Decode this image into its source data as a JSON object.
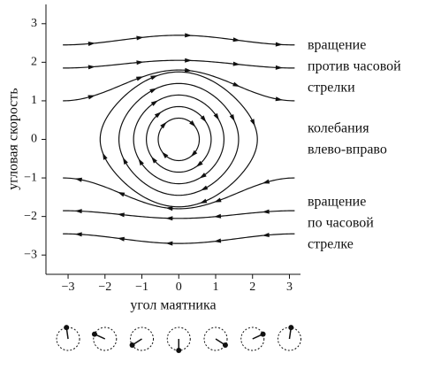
{
  "chart_data": {
    "type": "phase-portrait",
    "xlabel": "угол маятника",
    "ylabel": "угловая скорость",
    "xlim": [
      -3.6,
      3.3
    ],
    "ylim": [
      -3.5,
      3.5
    ],
    "xticks": [
      {
        "value": -3,
        "label": "−3"
      },
      {
        "value": -2,
        "label": "−2"
      },
      {
        "value": -1,
        "label": "−1"
      },
      0,
      1,
      2,
      3
    ],
    "yticks": [
      {
        "value": -3,
        "label": "−3"
      },
      {
        "value": -2,
        "label": "−2"
      },
      {
        "value": -1,
        "label": "−1"
      },
      0,
      1,
      2,
      3
    ],
    "rotations": [
      {
        "omega0": 2.7,
        "omega_pi": 2.45
      },
      {
        "omega0": 2.05,
        "omega_pi": 1.85
      },
      {
        "omega0": 1.8,
        "omega_pi": 1.0
      },
      {
        "omega0": -2.7,
        "omega_pi": -2.45
      },
      {
        "omega0": -2.05,
        "omega_pi": -1.85
      },
      {
        "omega0": -1.8,
        "omega_pi": -1.0
      }
    ],
    "orbits": [
      {
        "omega0": 0.55
      },
      {
        "omega0": 0.85
      },
      {
        "omega0": 1.15
      },
      {
        "omega0": 1.45
      },
      {
        "omega0": 1.75
      }
    ],
    "annotations": [
      [
        "вращение",
        "против часовой",
        "стрелки"
      ],
      [
        "колебания",
        "влево-вправо"
      ],
      [
        "вращение",
        "по часовой",
        "стрелке"
      ]
    ]
  }
}
